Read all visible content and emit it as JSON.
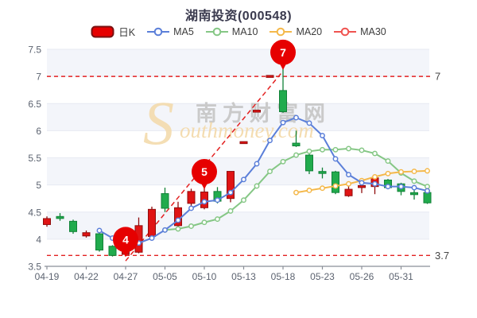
{
  "title": "湖南投资(000548)",
  "legend": [
    {
      "key": "daily-k",
      "label": "日K",
      "type": "candle",
      "color": "#e60000",
      "border": "#7a1212"
    },
    {
      "key": "ma5",
      "label": "MA5",
      "type": "line",
      "color": "#5b7fd9"
    },
    {
      "key": "ma10",
      "label": "MA10",
      "type": "line",
      "color": "#85c785"
    },
    {
      "key": "ma20",
      "label": "MA20",
      "type": "line",
      "color": "#f4b84a"
    },
    {
      "key": "ma30",
      "label": "MA30",
      "type": "line",
      "color": "#ef5350"
    }
  ],
  "watermark": {
    "cn": "南方财富网",
    "en": "Southmoney.com"
  },
  "chart_data": {
    "type": "candlestick",
    "title": "湖南投资(000548)",
    "ylim": [
      3.5,
      7.5
    ],
    "yticks": [
      3.5,
      4,
      4.5,
      5,
      5.5,
      6,
      6.5,
      7,
      7.5
    ],
    "xticks": [
      "04-19",
      "04-22",
      "04-27",
      "05-05",
      "05-10",
      "05-13",
      "05-18",
      "05-23",
      "05-26",
      "05-31"
    ],
    "xtick_indices": [
      0,
      3,
      6,
      9,
      12,
      15,
      18,
      21,
      24,
      27
    ],
    "candles": [
      {
        "o": 4.27,
        "h": 4.42,
        "l": 4.23,
        "c": 4.38
      },
      {
        "o": 4.4,
        "h": 4.48,
        "l": 4.34,
        "c": 4.37
      },
      {
        "o": 4.33,
        "h": 4.36,
        "l": 4.1,
        "c": 4.14
      },
      {
        "o": 4.06,
        "h": 4.16,
        "l": 4.03,
        "c": 4.12
      },
      {
        "o": 4.1,
        "h": 4.12,
        "l": 3.77,
        "c": 3.8
      },
      {
        "o": 3.87,
        "h": 3.89,
        "l": 3.68,
        "c": 3.7
      },
      {
        "o": 3.72,
        "h": 3.84,
        "l": 3.7,
        "c": 3.8
      },
      {
        "o": 3.76,
        "h": 4.4,
        "l": 3.74,
        "c": 4.25
      },
      {
        "o": 4.05,
        "h": 4.6,
        "l": 4.02,
        "c": 4.55
      },
      {
        "o": 4.84,
        "h": 4.95,
        "l": 4.5,
        "c": 4.57
      },
      {
        "o": 4.25,
        "h": 4.69,
        "l": 4.23,
        "c": 4.58
      },
      {
        "o": 4.66,
        "h": 4.93,
        "l": 4.6,
        "c": 4.88
      },
      {
        "o": 4.58,
        "h": 4.95,
        "l": 4.55,
        "c": 4.87
      },
      {
        "o": 4.88,
        "h": 4.96,
        "l": 4.66,
        "c": 4.7
      },
      {
        "o": 4.75,
        "h": 5.25,
        "l": 4.68,
        "c": 5.25
      },
      {
        "o": 5.78,
        "h": 5.78,
        "l": 5.78,
        "c": 5.78
      },
      {
        "o": 6.36,
        "h": 6.36,
        "l": 6.36,
        "c": 6.36
      },
      {
        "o": 7.0,
        "h": 7.0,
        "l": 7.0,
        "c": 7.0
      },
      {
        "o": 6.74,
        "h": 7.15,
        "l": 6.33,
        "c": 6.35
      },
      {
        "o": 5.77,
        "h": 6.0,
        "l": 5.7,
        "c": 5.72
      },
      {
        "o": 5.55,
        "h": 5.57,
        "l": 5.2,
        "c": 5.26
      },
      {
        "o": 5.23,
        "h": 5.32,
        "l": 5.12,
        "c": 5.2
      },
      {
        "o": 5.24,
        "h": 5.26,
        "l": 4.83,
        "c": 4.86
      },
      {
        "o": 4.8,
        "h": 5.02,
        "l": 4.78,
        "c": 4.92
      },
      {
        "o": 4.95,
        "h": 5.09,
        "l": 4.85,
        "c": 4.97
      },
      {
        "o": 4.97,
        "h": 5.15,
        "l": 4.83,
        "c": 5.13
      },
      {
        "o": 5.09,
        "h": 5.11,
        "l": 4.92,
        "c": 4.95
      },
      {
        "o": 5.02,
        "h": 5.04,
        "l": 4.81,
        "c": 4.88
      },
      {
        "o": 4.84,
        "h": 4.92,
        "l": 4.73,
        "c": 4.82
      },
      {
        "o": 4.86,
        "h": 4.92,
        "l": 4.65,
        "c": 4.67
      }
    ],
    "series": {
      "ma5": [
        null,
        null,
        null,
        null,
        4.16,
        4.02,
        3.91,
        3.93,
        4.02,
        4.17,
        4.35,
        4.57,
        4.69,
        4.72,
        4.86,
        5.1,
        5.39,
        5.82,
        6.15,
        6.24,
        6.14,
        5.91,
        5.48,
        5.19,
        5.04,
        5.02,
        4.97,
        4.97,
        4.95,
        4.89
      ],
      "ma10": [
        null,
        null,
        null,
        null,
        null,
        null,
        null,
        null,
        null,
        4.17,
        4.19,
        4.24,
        4.31,
        4.37,
        4.52,
        4.72,
        4.98,
        5.25,
        5.43,
        5.55,
        5.62,
        5.65,
        5.65,
        5.67,
        5.64,
        5.58,
        5.44,
        5.22,
        5.07,
        4.97
      ],
      "ma20": [
        null,
        null,
        null,
        null,
        null,
        null,
        null,
        null,
        null,
        null,
        null,
        null,
        null,
        null,
        null,
        null,
        null,
        null,
        null,
        4.86,
        4.9,
        4.94,
        4.98,
        5.02,
        5.08,
        5.15,
        5.21,
        5.24,
        5.25,
        5.26
      ],
      "ma30": [
        null,
        null,
        null,
        null,
        null,
        null,
        null,
        null,
        null,
        null,
        null,
        null,
        null,
        null,
        null,
        null,
        null,
        null,
        null,
        null,
        null,
        null,
        null,
        null,
        null,
        null,
        null,
        null,
        null,
        4.89
      ]
    },
    "annotations": {
      "hlines": [
        {
          "price": 7,
          "label": "7"
        },
        {
          "price": 3.7,
          "label": "3.7"
        }
      ],
      "trendline": {
        "from": {
          "index": 6,
          "price": 3.6
        },
        "to": {
          "index": 18,
          "price": 7.1
        }
      },
      "markers": [
        {
          "index": 6,
          "price": 3.7,
          "label": "4"
        },
        {
          "index": 12,
          "price": 4.95,
          "label": "5"
        },
        {
          "index": 18,
          "price": 7.15,
          "label": "7"
        }
      ]
    },
    "colors": {
      "up": "#e01414",
      "up_border": "#900d0d",
      "down": "#21ab4d",
      "down_border": "#118238",
      "ma5": "#5b7fd9",
      "ma10": "#85c785",
      "ma20": "#f4b84a",
      "ma30": "#ef5350",
      "annotation": "#e32222",
      "marker_balloon": "#e60000",
      "band": "#f3f5fa",
      "grid": "#e7eaf2",
      "axis": "#8b8f99",
      "tick_label": "#5c6370",
      "hline_label": "#454545",
      "watermark_cn": "#cacaca",
      "watermark_en": "#f3d9a8"
    },
    "legend_position": "top",
    "grid": true
  }
}
